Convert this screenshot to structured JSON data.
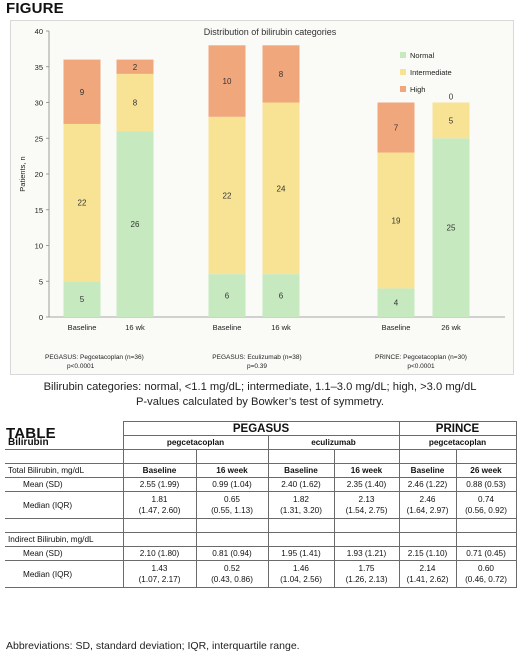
{
  "figure_heading": "FIGURE",
  "table_heading": "TABLE",
  "chart_data": {
    "type": "bar",
    "stacked": true,
    "title": "Distribution of bilirubin categories",
    "ylabel": "Patients, n",
    "ylim": [
      0,
      40
    ],
    "yticks": [
      0,
      5,
      10,
      15,
      20,
      25,
      30,
      35,
      40
    ],
    "legend_position": "right",
    "series_names": [
      "Normal",
      "Intermediate",
      "High"
    ],
    "colors": {
      "Normal": "#c6e9c0",
      "Intermediate": "#f8e394",
      "High": "#f0a77c"
    },
    "groups": [
      {
        "name": "PEGASUS: Pegcetacoplan (n=36)",
        "pvalue": "p<0.0001",
        "bars": [
          {
            "label": "Baseline",
            "Normal": 5,
            "Intermediate": 22,
            "High": 9
          },
          {
            "label": "16 wk",
            "Normal": 26,
            "Intermediate": 8,
            "High": 2
          }
        ]
      },
      {
        "name": "PEGASUS: Eculizumab (n=38)",
        "pvalue": "p=0.39",
        "bars": [
          {
            "label": "Baseline",
            "Normal": 6,
            "Intermediate": 22,
            "High": 10
          },
          {
            "label": "16 wk",
            "Normal": 6,
            "Intermediate": 24,
            "High": 8
          }
        ]
      },
      {
        "name": "PRINCE: Pegcetacoplan (n=30)",
        "pvalue": "p<0.0001",
        "bars": [
          {
            "label": "Baseline",
            "Normal": 4,
            "Intermediate": 19,
            "High": 7
          },
          {
            "label": "26 wk",
            "Normal": 25,
            "Intermediate": 5,
            "High": 0
          }
        ]
      }
    ]
  },
  "caption": [
    "Bilirubin categories: normal, <1.1 mg/dL; intermediate, 1.1–3.0 mg/dL; high, >3.0 mg/dL",
    "P-values calculated by Bowker’s test of symmetry."
  ],
  "table": {
    "row_header": "Bilirubin",
    "studies": [
      "PEGASUS",
      "PRINCE"
    ],
    "drugs": [
      "pegcetacoplan",
      "eculizumab",
      "pegcetacoplan"
    ],
    "timepoints": [
      "Baseline",
      "16 week",
      "Baseline",
      "16 week",
      "Baseline",
      "26 week"
    ],
    "total_label": "Total Bilirubin, mg/dL",
    "indirect_label": "Indirect Bilirubin, mg/dL",
    "mean_label": "Mean (SD)",
    "median_label": "Median (IQR)",
    "total_mean": [
      "2.55 (1.99)",
      "0.99 (1.04)",
      "2.40 (1.62)",
      "2.35 (1.40)",
      "2.46 (1.22)",
      "0.88 (0.53)"
    ],
    "total_median": [
      [
        "1.81",
        "(1.47, 2.60)"
      ],
      [
        "0.65",
        "(0.55, 1.13)"
      ],
      [
        "1.82",
        "(1.31, 3.20)"
      ],
      [
        "2.13",
        "(1.54, 2.75)"
      ],
      [
        "2.46",
        "(1.64, 2.97)"
      ],
      [
        "0.74",
        "(0.56, 0.92)"
      ]
    ],
    "indirect_mean": [
      "2.10 (1.80)",
      "0.81 (0.94)",
      "1.95 (1.41)",
      "1.93 (1.21)",
      "2.15 (1.10)",
      "0.71 (0.45)"
    ],
    "indirect_median": [
      [
        "1.43",
        "(1.07, 2.17)"
      ],
      [
        "0.52",
        "(0.43, 0.86)"
      ],
      [
        "1.46",
        "(1.04, 2.56)"
      ],
      [
        "1.75",
        "(1.26, 2.13)"
      ],
      [
        "2.14",
        "(1.41, 2.62)"
      ],
      [
        "0.60",
        "(0.46, 0.72)"
      ]
    ]
  },
  "abbreviations": "Abbreviations: SD, standard deviation; IQR, interquartile range."
}
